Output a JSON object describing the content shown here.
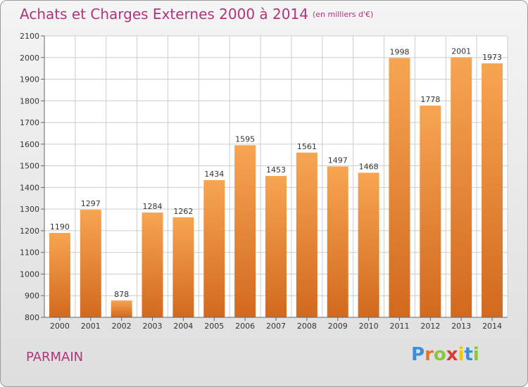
{
  "title": "Achats et Charges Externes 2000 à 2014",
  "unit": "(en milliers d'€)",
  "commune": "PARMAIN",
  "logo": {
    "text": "Proxiti",
    "letters": [
      {
        "ch": "P",
        "color": "#3d8ed6"
      },
      {
        "ch": "r",
        "color": "#e8742a"
      },
      {
        "ch": "o",
        "color": "#8cc63f"
      },
      {
        "ch": "x",
        "color": "#d93a3a"
      },
      {
        "ch": "i",
        "color": "#f2c500"
      },
      {
        "ch": "t",
        "color": "#3d8ed6"
      },
      {
        "ch": "i",
        "color": "#8cc63f"
      }
    ]
  },
  "colors": {
    "title": "#b0347a",
    "bar_light": "#f7a552",
    "bar_dark": "#d2691e"
  },
  "chart_data": {
    "type": "bar",
    "categories": [
      "2000",
      "2001",
      "2002",
      "2003",
      "2004",
      "2005",
      "2006",
      "2007",
      "2008",
      "2009",
      "2010",
      "2011",
      "2012",
      "2013",
      "2014"
    ],
    "values": [
      1190,
      1297,
      878,
      1284,
      1262,
      1434,
      1595,
      1453,
      1561,
      1497,
      1468,
      1998,
      1778,
      2001,
      1973
    ],
    "yticks": [
      800,
      900,
      1000,
      1100,
      1200,
      1300,
      1400,
      1500,
      1600,
      1700,
      1800,
      1900,
      2000,
      2100
    ],
    "ylim": [
      800,
      2100
    ],
    "grid": true
  }
}
